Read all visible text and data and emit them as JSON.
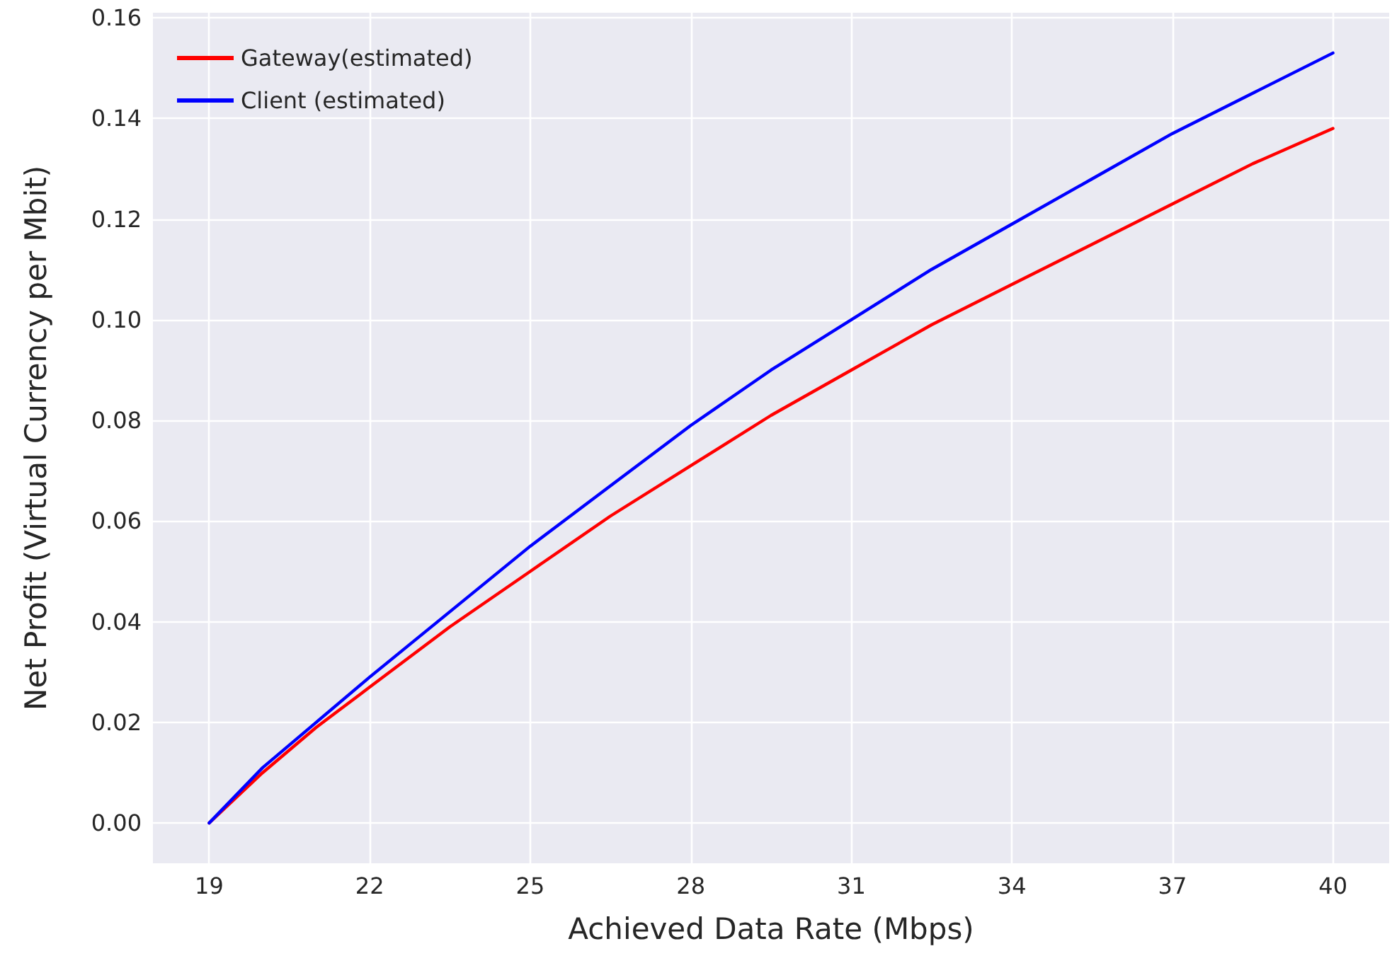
{
  "chart_data": {
    "type": "line",
    "xlabel": "Achieved Data Rate (Mbps)",
    "ylabel": "Net Profit (Virtual Currency per Mbit)",
    "x": [
      19,
      20,
      21,
      22,
      23.5,
      25,
      26.5,
      28,
      29.5,
      31,
      32.5,
      34,
      35.5,
      37,
      38.5,
      40
    ],
    "series": [
      {
        "name": "Gateway(estimated)",
        "color": "#ff0000",
        "values": [
          0,
          0.01,
          0.019,
          0.027,
          0.039,
          0.05,
          0.061,
          0.071,
          0.081,
          0.09,
          0.099,
          0.107,
          0.115,
          0.123,
          0.131,
          0.138
        ]
      },
      {
        "name": "Client (estimated)",
        "color": "#0000ff",
        "values": [
          0,
          0.011,
          0.02,
          0.029,
          0.042,
          0.055,
          0.067,
          0.079,
          0.09,
          0.1,
          0.11,
          0.119,
          0.128,
          0.137,
          0.145,
          0.153
        ]
      }
    ],
    "xlim": [
      17.95,
      41.05
    ],
    "ylim": [
      -0.008,
      0.161
    ],
    "xticks": [
      19,
      22,
      25,
      28,
      31,
      34,
      37,
      40
    ],
    "yticks": [
      {
        "value": 0,
        "label": "0.00"
      },
      {
        "value": 0.02,
        "label": "0.02"
      },
      {
        "value": 0.04,
        "label": "0.04"
      },
      {
        "value": 0.06,
        "label": "0.06"
      },
      {
        "value": 0.08,
        "label": "0.08"
      },
      {
        "value": 0.1,
        "label": "0.10"
      },
      {
        "value": 0.12,
        "label": "0.12"
      },
      {
        "value": 0.14,
        "label": "0.14"
      },
      {
        "value": 0.16,
        "label": "0.16"
      }
    ],
    "grid": true,
    "legend": "top left",
    "marker": "none",
    "line_style": "solid"
  }
}
